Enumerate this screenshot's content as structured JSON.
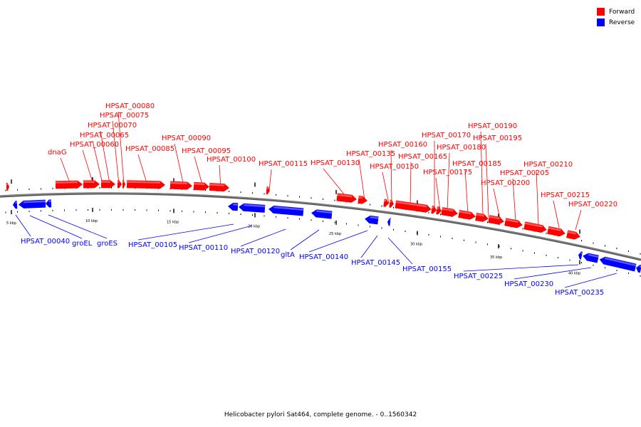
{
  "colors": {
    "forward": "#ff0000",
    "reverse": "#0000ff",
    "backbone": "#808080"
  },
  "legend": [
    {
      "label": "Forward",
      "color": "#ff0000"
    },
    {
      "label": "Reverse",
      "color": "#0000ff"
    }
  ],
  "caption": "Helicobacter pylori Sat464, complete genome. - 0..1560342",
  "scale": {
    "unit": "kbp",
    "labels": [
      "5 kbp",
      "10 kbp",
      "15 kbp",
      "20 kbp",
      "25 kbp",
      "30 kbp",
      "35 kbp",
      "40 kbp"
    ]
  },
  "genes": {
    "forward": [
      "dnaG",
      "HPSAT_00060",
      "HPSAT_00065",
      "HPSAT_00070",
      "HPSAT_00075",
      "HPSAT_00080",
      "HPSAT_00085",
      "HPSAT_00090",
      "HPSAT_00095",
      "HPSAT_00100",
      "HPSAT_00115",
      "HPSAT_00130",
      "HPSAT_00135",
      "HPSAT_00150",
      "HPSAT_00160",
      "HPSAT_00165",
      "HPSAT_00170",
      "HPSAT_00175",
      "HPSAT_00180",
      "HPSAT_00185",
      "HPSAT_00190",
      "HPSAT_00195",
      "HPSAT_00200",
      "HPSAT_00205",
      "HPSAT_00210",
      "HPSAT_00215",
      "HPSAT_00220"
    ],
    "reverse": [
      "HPSAT_00040",
      "groEL",
      "groES",
      "HPSAT_00105",
      "HPSAT_00110",
      "HPSAT_00120",
      "gltA",
      "HPSAT_00140",
      "HPSAT_00145",
      "HPSAT_00155",
      "HPSAT_00225",
      "HPSAT_00230",
      "HPSAT_00235"
    ]
  }
}
